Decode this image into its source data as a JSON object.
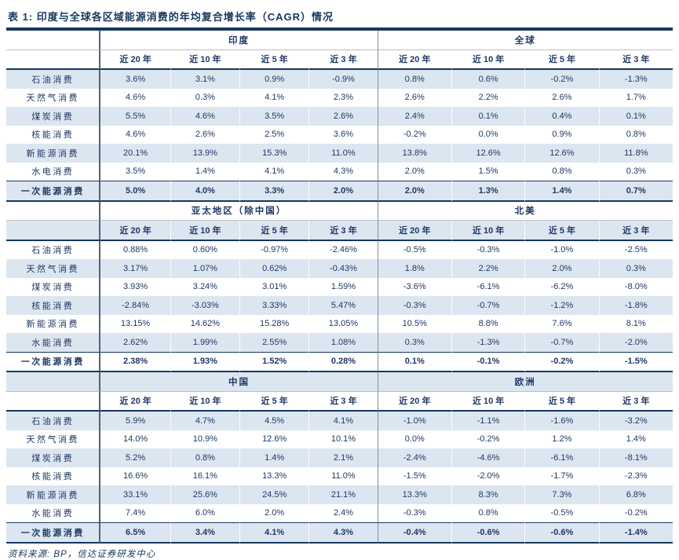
{
  "title": "表 1:  印度与全球各区域能源消费的年均复合增长率（CAGR）情况",
  "source_note": "资料来源: BP，信达证券研发中心",
  "colors": {
    "text_navy": "#1F3864",
    "stripe_blue": "#DCE6F1",
    "line_dark": "#17375E",
    "line_gray": "#BFBFBF",
    "vertical_gray": "#55627A"
  },
  "table": {
    "period_headers": [
      "近 20 年",
      "近 10 年",
      "近 5 年",
      "近 3 年"
    ],
    "sections": [
      {
        "left_region": "印度",
        "right_region": "全球",
        "rows": [
          {
            "label": "石油消费",
            "bold": false,
            "left": [
              "3.6%",
              "3.1%",
              "0.9%",
              "-0.9%"
            ],
            "right": [
              "0.8%",
              "0.6%",
              "-0.2%",
              "-1.3%"
            ]
          },
          {
            "label": "天然气消费",
            "bold": false,
            "left": [
              "4.6%",
              "0.3%",
              "4.1%",
              "2.3%"
            ],
            "right": [
              "2.6%",
              "2.2%",
              "2.6%",
              "1.7%"
            ]
          },
          {
            "label": "煤炭消费",
            "bold": false,
            "left": [
              "5.5%",
              "4.6%",
              "3.5%",
              "2.6%"
            ],
            "right": [
              "2.4%",
              "0.1%",
              "0.4%",
              "0.1%"
            ]
          },
          {
            "label": "核能消费",
            "bold": false,
            "left": [
              "4.6%",
              "2.6%",
              "2.5%",
              "3.6%"
            ],
            "right": [
              "-0.2%",
              "0.0%",
              "0.9%",
              "0.8%"
            ]
          },
          {
            "label": "新能源消费",
            "bold": false,
            "left": [
              "20.1%",
              "13.9%",
              "15.3%",
              "11.0%"
            ],
            "right": [
              "13.8%",
              "12.6%",
              "12.6%",
              "11.8%"
            ]
          },
          {
            "label": "水电消费",
            "bold": false,
            "left": [
              "3.5%",
              "1.4%",
              "4.1%",
              "4.3%"
            ],
            "right": [
              "2.0%",
              "1.5%",
              "0.8%",
              "0.3%"
            ]
          },
          {
            "label": "一次能源消费",
            "bold": true,
            "left": [
              "5.0%",
              "4.0%",
              "3.3%",
              "2.0%"
            ],
            "right": [
              "2.0%",
              "1.3%",
              "1.4%",
              "0.7%"
            ]
          }
        ]
      },
      {
        "left_region": "亚太地区（除中国）",
        "right_region": "北美",
        "rows": [
          {
            "label": "石油消费",
            "bold": false,
            "left": [
              "0.88%",
              "0.60%",
              "-0.97%",
              "-2.46%"
            ],
            "right": [
              "-0.5%",
              "-0.3%",
              "-1.0%",
              "-2.5%"
            ]
          },
          {
            "label": "天然气消费",
            "bold": false,
            "left": [
              "3.17%",
              "1.07%",
              "0.62%",
              "-0.43%"
            ],
            "right": [
              "1.8%",
              "2.2%",
              "2.0%",
              "0.3%"
            ]
          },
          {
            "label": "煤炭消费",
            "bold": false,
            "left": [
              "3.93%",
              "3.24%",
              "3.01%",
              "1.59%"
            ],
            "right": [
              "-3.6%",
              "-6.1%",
              "-6.2%",
              "-8.0%"
            ]
          },
          {
            "label": "核能消费",
            "bold": false,
            "left": [
              "-2.84%",
              "-3.03%",
              "3.33%",
              "5.47%"
            ],
            "right": [
              "-0.3%",
              "-0.7%",
              "-1.2%",
              "-1.8%"
            ]
          },
          {
            "label": "新能源消费",
            "bold": false,
            "left": [
              "13.15%",
              "14.62%",
              "15.28%",
              "13.05%"
            ],
            "right": [
              "10.5%",
              "8.8%",
              "7.6%",
              "8.1%"
            ]
          },
          {
            "label": "水能消费",
            "bold": false,
            "left": [
              "2.62%",
              "1.99%",
              "2.55%",
              "1.08%"
            ],
            "right": [
              "0.3%",
              "-1.3%",
              "-0.7%",
              "-2.0%"
            ]
          },
          {
            "label": "一次能源消费",
            "bold": true,
            "left": [
              "2.38%",
              "1.93%",
              "1.52%",
              "0.28%"
            ],
            "right": [
              "0.1%",
              "-0.1%",
              "-0.2%",
              "-1.5%"
            ]
          }
        ]
      },
      {
        "left_region": "中国",
        "right_region": "欧洲",
        "rows": [
          {
            "label": "石油消费",
            "bold": false,
            "left": [
              "5.9%",
              "4.7%",
              "4.5%",
              "4.1%"
            ],
            "right": [
              "-1.0%",
              "-1.1%",
              "-1.6%",
              "-3.2%"
            ]
          },
          {
            "label": "天然气消费",
            "bold": false,
            "left": [
              "14.0%",
              "10.9%",
              "12.6%",
              "10.1%"
            ],
            "right": [
              "0.0%",
              "-0.2%",
              "1.2%",
              "1.4%"
            ]
          },
          {
            "label": "煤炭消费",
            "bold": false,
            "left": [
              "5.2%",
              "0.8%",
              "1.4%",
              "2.1%"
            ],
            "right": [
              "-2.4%",
              "-4.6%",
              "-6.1%",
              "-8.1%"
            ]
          },
          {
            "label": "核能消费",
            "bold": false,
            "left": [
              "16.6%",
              "16.1%",
              "13.3%",
              "11.0%"
            ],
            "right": [
              "-1.5%",
              "-2.0%",
              "-1.7%",
              "-2.3%"
            ]
          },
          {
            "label": "新能源消费",
            "bold": false,
            "left": [
              "33.1%",
              "25.6%",
              "24.5%",
              "21.1%"
            ],
            "right": [
              "13.3%",
              "8.3%",
              "7.3%",
              "6.8%"
            ]
          },
          {
            "label": "水能消费",
            "bold": false,
            "left": [
              "7.4%",
              "6.0%",
              "2.0%",
              "2.4%"
            ],
            "right": [
              "-0.3%",
              "0.8%",
              "-0.5%",
              "-0.2%"
            ]
          },
          {
            "label": "一次能源消费",
            "bold": true,
            "left": [
              "6.5%",
              "3.4%",
              "4.1%",
              "4.3%"
            ],
            "right": [
              "-0.4%",
              "-0.6%",
              "-0.6%",
              "-1.4%"
            ]
          }
        ]
      }
    ]
  }
}
